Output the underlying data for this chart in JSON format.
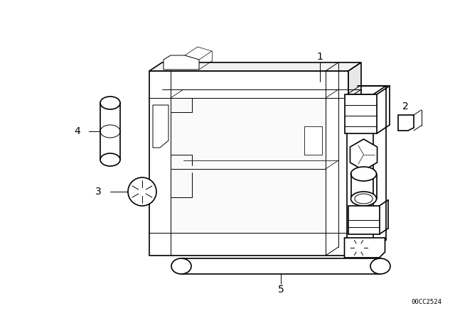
{
  "bg_color": "#ffffff",
  "line_color": "#000000",
  "fig_width": 6.4,
  "fig_height": 4.48,
  "dpi": 100,
  "watermark": "00CC2524",
  "lw_main": 1.2,
  "lw_thin": 0.7,
  "lw_label": 0.7
}
